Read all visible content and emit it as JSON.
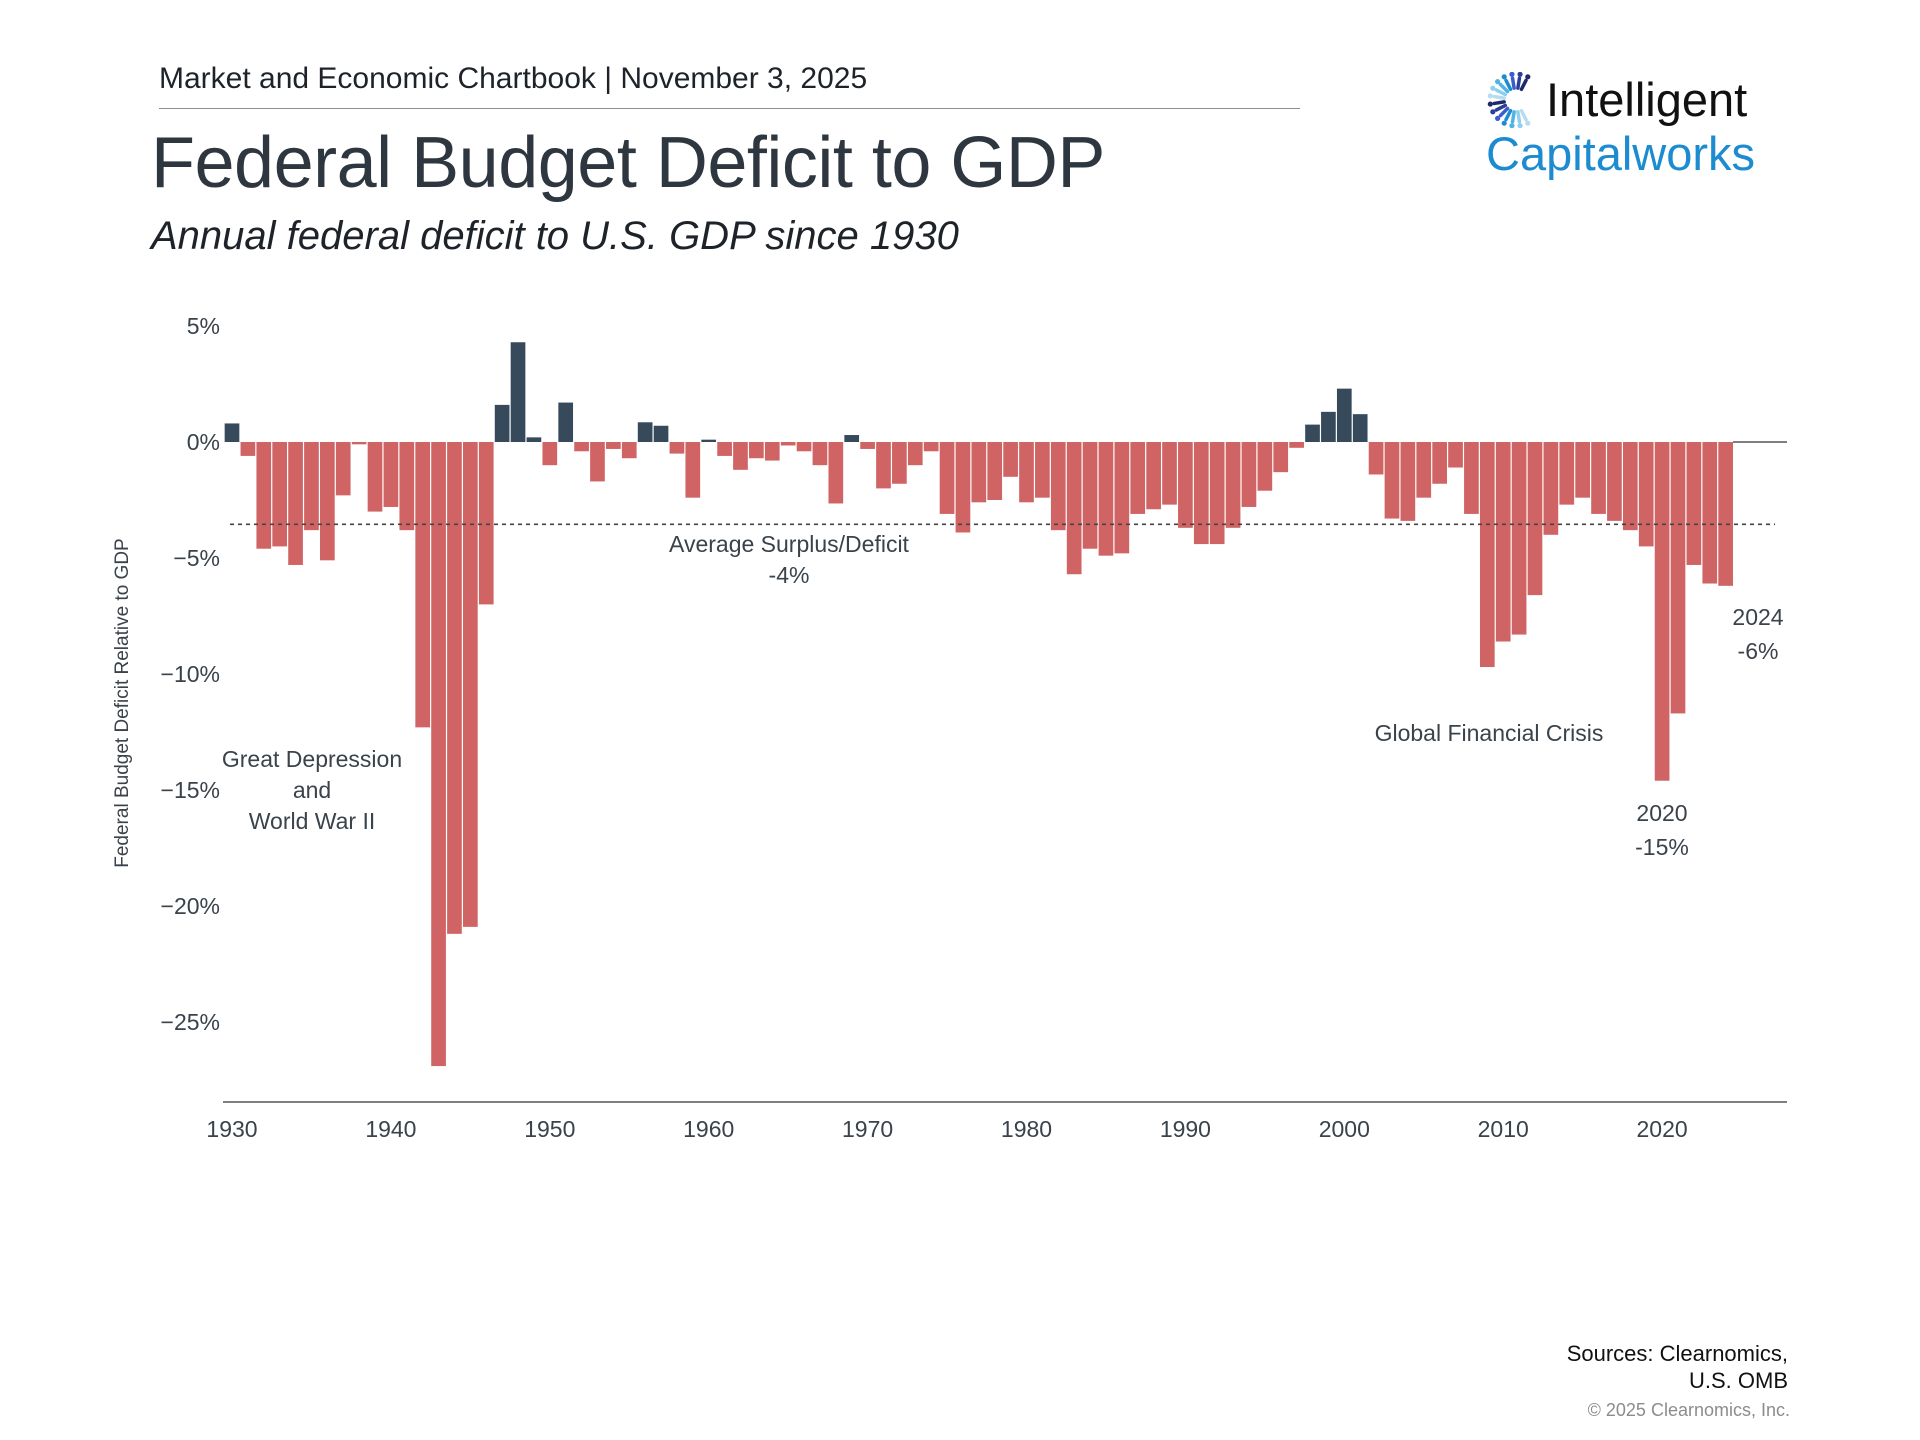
{
  "header": {
    "chartbook": "Market and Economic Chartbook | November 3, 2025",
    "title": "Federal Budget Deficit to GDP",
    "subtitle": "Annual federal deficit to U.S. GDP since 1930"
  },
  "logo": {
    "line1": "Intelligent",
    "line2": "Capitalworks",
    "color": "#1c8bd0"
  },
  "footer": {
    "sources_line1": "Sources: Clearnomics,",
    "sources_line2": "U.S. OMB",
    "copyright": "© 2025 Clearnomics, Inc."
  },
  "colors": {
    "deficit": "#d06464",
    "surplus": "#364a5c",
    "text": "#3a424a"
  },
  "chart_data": {
    "type": "bar",
    "ylabel": "Federal Budget Deficit Relative to GDP",
    "xlabel": "",
    "ylim": [
      -28.5,
      5
    ],
    "y_ticks": [
      5,
      0,
      -5,
      -10,
      -15,
      -20,
      -25
    ],
    "y_tick_labels": [
      "5%",
      "0%",
      "−5%",
      "−10%",
      "−15%",
      "−20%",
      "−25%"
    ],
    "x_ticks": [
      1930,
      1940,
      1950,
      1960,
      1970,
      1980,
      1990,
      2000,
      2010,
      2020
    ],
    "x_tick_labels": [
      "1930",
      "1940",
      "1950",
      "1960",
      "1970",
      "1980",
      "1990",
      "2000",
      "2010",
      "2020"
    ],
    "xlim": [
      1929.5,
      2028
    ],
    "grid": false,
    "average": -3.55,
    "start_year": 1930,
    "values": [
      0.8,
      -0.6,
      -4.6,
      -4.5,
      -5.3,
      -3.8,
      -5.1,
      -2.3,
      -0.1,
      -3.0,
      -2.8,
      -3.8,
      -12.3,
      -26.9,
      -21.2,
      -20.9,
      -7.0,
      1.6,
      4.3,
      0.2,
      -1.0,
      1.7,
      -0.4,
      -1.7,
      -0.3,
      -0.7,
      0.85,
      0.7,
      -0.5,
      -2.4,
      0.1,
      -0.6,
      -1.2,
      -0.7,
      -0.8,
      -0.15,
      -0.4,
      -1.0,
      -2.65,
      0.3,
      -0.3,
      -2.0,
      -1.8,
      -1.0,
      -0.4,
      -3.1,
      -3.9,
      -2.6,
      -2.5,
      -1.5,
      -2.6,
      -2.4,
      -3.8,
      -5.7,
      -4.6,
      -4.9,
      -4.8,
      -3.1,
      -2.9,
      -2.7,
      -3.7,
      -4.4,
      -4.4,
      -3.7,
      -2.8,
      -2.1,
      -1.3,
      -0.25,
      0.75,
      1.3,
      2.3,
      1.2,
      -1.4,
      -3.3,
      -3.4,
      -2.4,
      -1.8,
      -1.1,
      -3.1,
      -9.7,
      -8.6,
      -8.3,
      -6.6,
      -4.0,
      -2.7,
      -2.4,
      -3.1,
      -3.4,
      -3.8,
      -4.5,
      -14.6,
      -11.7,
      -5.3,
      -6.1,
      -6.2
    ],
    "annotations": [
      {
        "lines": [
          "Great Depression",
          "and",
          "World War II"
        ]
      },
      {
        "lines": [
          "Average Surplus/Deficit",
          "-4%"
        ]
      },
      {
        "lines": [
          "Global Financial Crisis"
        ]
      },
      {
        "lines": [
          "2020",
          "-15%"
        ]
      },
      {
        "lines": [
          "2024",
          "-6%"
        ]
      }
    ]
  }
}
